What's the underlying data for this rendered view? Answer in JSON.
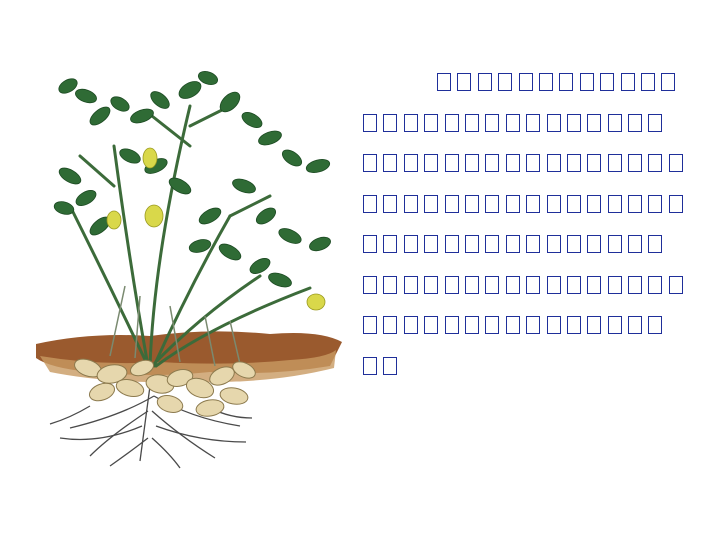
{
  "paragraph": {
    "lines": [
      "□□□□□□□□□□□□",
      "□□□□□□□□□□□□□□□",
      "□□□□□□□□□□□□□□□□",
      "□□□□□□□□□□□□□□□□",
      "□□□□□□□□□□□□□□□",
      "□□□□□□□□□□□□□□□□",
      "□□□□□□□□□□□□□□□",
      "□□"
    ],
    "text_color": "#1f2f9a"
  },
  "illustration": {
    "subject": "peanut-plant-icon"
  }
}
